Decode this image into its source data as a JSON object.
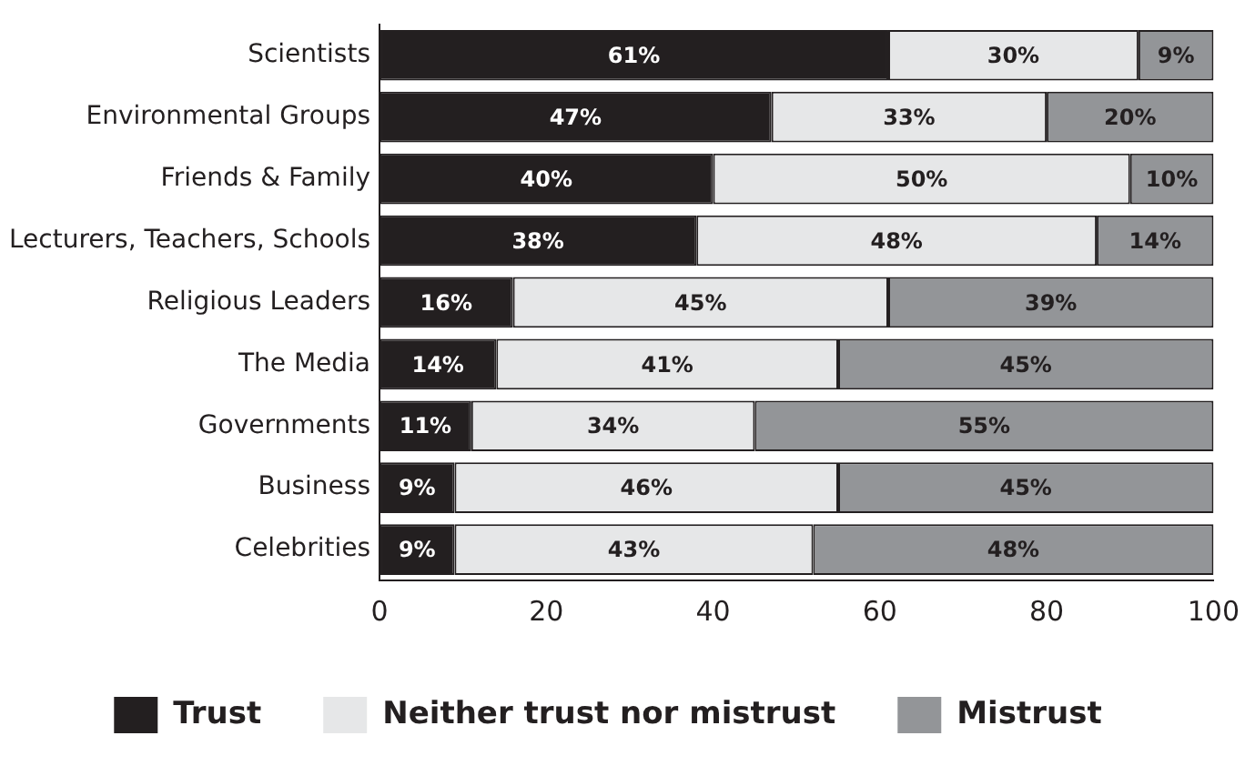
{
  "chart_data": {
    "type": "bar",
    "orientation": "horizontal",
    "stacked": true,
    "categories": [
      "Scientists",
      "Environmental Groups",
      "Friends & Family",
      "Lecturers, Teachers, Schools",
      "Religious Leaders",
      "The Media",
      "Governments",
      "Business",
      "Celebrities"
    ],
    "series": [
      {
        "name": "Trust",
        "color": "#231f20",
        "values": [
          61,
          47,
          40,
          38,
          16,
          14,
          11,
          9,
          9
        ],
        "value_labels": [
          "61%",
          "47%",
          "40%",
          "38%",
          "16%",
          "14%",
          "11%",
          "9%",
          "9%"
        ]
      },
      {
        "name": "Neither trust nor mistrust",
        "color": "#e6e7e8",
        "values": [
          30,
          33,
          50,
          48,
          45,
          41,
          34,
          46,
          43
        ],
        "value_labels": [
          "30%",
          "33%",
          "50%",
          "48%",
          "45%",
          "41%",
          "34%",
          "46%",
          "43%"
        ]
      },
      {
        "name": "Mistrust",
        "color": "#939598",
        "values": [
          9,
          20,
          10,
          14,
          39,
          45,
          55,
          45,
          48
        ],
        "value_labels": [
          "9%",
          "20%",
          "10%",
          "14%",
          "39%",
          "45%",
          "55%",
          "45%",
          "48%"
        ]
      }
    ],
    "xlim": [
      0,
      100
    ],
    "xticks": [
      0,
      20,
      40,
      60,
      80,
      100
    ],
    "grid": false,
    "legend": "bottom"
  }
}
